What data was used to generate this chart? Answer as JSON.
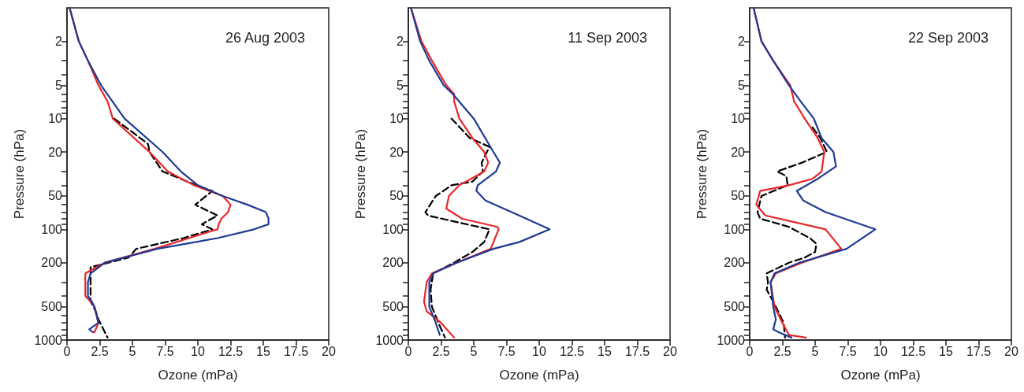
{
  "chart_data": [
    {
      "type": "line",
      "title": "26 Aug 2003",
      "xlabel": "Ozone (mPa)",
      "ylabel": "Pressure (hPa)",
      "log": "y",
      "xlim": [
        0,
        20
      ],
      "xticks": [
        0,
        2.5,
        5,
        7.5,
        10,
        12.5,
        15,
        17.5,
        20
      ],
      "ylim": [
        1000,
        1
      ],
      "yticks": [
        1000,
        {
          "value": 900,
          "label": null
        },
        {
          "value": 800,
          "label": null
        },
        {
          "value": 700,
          "label": null
        },
        {
          "value": 600,
          "label": null
        },
        500,
        {
          "value": 400,
          "label": null
        },
        {
          "value": 300,
          "label": null
        },
        200,
        100,
        {
          "value": 90,
          "label": null
        },
        {
          "value": 80,
          "label": null
        },
        {
          "value": 70,
          "label": null
        },
        {
          "value": 60,
          "label": null
        },
        50,
        {
          "value": 40,
          "label": null
        },
        {
          "value": 30,
          "label": null
        },
        20,
        10,
        {
          "value": 9,
          "label": null
        },
        {
          "value": 8,
          "label": null
        },
        {
          "value": 7,
          "label": null
        },
        {
          "value": 6,
          "label": null
        },
        5,
        {
          "value": 4,
          "label": null
        },
        {
          "value": 3,
          "label": null
        },
        2
      ],
      "series": [
        {
          "color": "#000000",
          "line_style": "dashed",
          "x": [
            3.6,
            4.9,
            6.2,
            6.3,
            7.3,
            9.9,
            11.1,
            9.8,
            11.5,
            10.3,
            11.1,
            8.9,
            5.3,
            4.7,
            1.8,
            1.8,
            2.2,
            2.4,
            3.1
          ],
          "values": [
            10,
            13,
            17,
            20,
            30,
            40,
            45,
            60,
            75,
            90,
            100,
            120,
            150,
            180,
            220,
            450,
            550,
            650,
            950
          ]
        },
        {
          "color": "#e8262a",
          "line_style": "solid",
          "x": [
            0.2,
            0.9,
            1.6,
            2.4,
            3.1,
            3.5,
            6.3,
            7.7,
            9.7,
            11.9,
            12.5,
            12.3,
            11.8,
            11.6,
            11.5,
            10.9,
            6.7,
            2.9,
            1.4,
            1.4,
            1.4,
            1.8,
            2.1,
            2.4,
            2.1
          ],
          "values": [
            1,
            2,
            3,
            5,
            7,
            10,
            20,
            30,
            40,
            50,
            60,
            70,
            80,
            90,
            100,
            105,
            150,
            200,
            250,
            300,
            400,
            450,
            500,
            700,
            850
          ]
        },
        {
          "color": "#1f3a93",
          "line_style": "solid",
          "x": [
            0.2,
            0.9,
            1.6,
            2.6,
            4.4,
            7.3,
            8.7,
            10.0,
            11.9,
            13.8,
            15.2,
            15.4,
            15.4,
            14.3,
            11.5,
            6.9,
            2.9,
            1.8,
            1.6,
            1.6,
            1.9,
            2.1,
            2.4,
            1.7,
            2.0
          ],
          "values": [
            1,
            2,
            3,
            5,
            10,
            20,
            30,
            40,
            50,
            60,
            70,
            80,
            90,
            100,
            120,
            150,
            200,
            250,
            300,
            400,
            450,
            500,
            700,
            800,
            850
          ]
        }
      ]
    },
    {
      "type": "line",
      "title": "11 Sep 2003",
      "xlabel": "Ozone (mPa)",
      "ylabel": "Pressure (hPa)",
      "log": "y",
      "xlim": [
        0,
        20
      ],
      "xticks": [
        0,
        2.5,
        5,
        7.5,
        10,
        12.5,
        15,
        17.5,
        20
      ],
      "ylim": [
        1000,
        1
      ],
      "yticks": [
        1000,
        {
          "value": 900,
          "label": null
        },
        {
          "value": 800,
          "label": null
        },
        {
          "value": 700,
          "label": null
        },
        {
          "value": 600,
          "label": null
        },
        500,
        {
          "value": 400,
          "label": null
        },
        {
          "value": 300,
          "label": null
        },
        200,
        100,
        {
          "value": 90,
          "label": null
        },
        {
          "value": 80,
          "label": null
        },
        {
          "value": 70,
          "label": null
        },
        {
          "value": 60,
          "label": null
        },
        50,
        {
          "value": 40,
          "label": null
        },
        {
          "value": 30,
          "label": null
        },
        20,
        10,
        {
          "value": 9,
          "label": null
        },
        {
          "value": 8,
          "label": null
        },
        {
          "value": 7,
          "label": null
        },
        {
          "value": 6,
          "label": null
        },
        5,
        {
          "value": 4,
          "label": null
        },
        {
          "value": 3,
          "label": null
        },
        2
      ],
      "series": [
        {
          "color": "#000000",
          "line_style": "dashed",
          "x": [
            3.3,
            4.7,
            6.2,
            5.6,
            5.7,
            4.9,
            3.3,
            2.1,
            1.3,
            1.5,
            3.5,
            6.2,
            5.8,
            4.9,
            3.5,
            1.9,
            1.7,
            1.8,
            2.3,
            2.8
          ],
          "values": [
            10,
            15,
            18,
            25,
            30,
            37,
            40,
            50,
            70,
            75,
            85,
            100,
            130,
            160,
            200,
            250,
            350,
            500,
            700,
            950
          ]
        },
        {
          "color": "#e8262a",
          "line_style": "solid",
          "x": [
            0.2,
            1.0,
            1.8,
            2.9,
            3.5,
            3.5,
            3.9,
            4.9,
            5.8,
            6.1,
            5.8,
            3.9,
            3.1,
            2.9,
            4.1,
            6.8,
            6.9,
            6.3,
            3.7,
            1.8,
            1.4,
            1.2,
            1.4,
            2.5,
            3.5
          ],
          "values": [
            1,
            2,
            3,
            5,
            6,
            7,
            10,
            15,
            20,
            25,
            30,
            40,
            50,
            65,
            80,
            95,
            100,
            150,
            200,
            250,
            300,
            450,
            550,
            700,
            950
          ]
        },
        {
          "color": "#1f3a93",
          "line_style": "solid",
          "x": [
            0.2,
            0.9,
            1.6,
            2.7,
            3.4,
            5.0,
            6.5,
            7.0,
            6.7,
            5.3,
            5.2,
            5.9,
            7.9,
            10.8,
            8.5,
            6.5,
            3.7,
            1.9,
            1.6,
            1.6,
            2.1,
            2.4
          ],
          "values": [
            1,
            2,
            3,
            5,
            6,
            10,
            20,
            25,
            30,
            40,
            45,
            55,
            70,
            100,
            130,
            150,
            200,
            250,
            300,
            500,
            700,
            900
          ]
        }
      ]
    },
    {
      "type": "line",
      "title": "22 Sep 2003",
      "xlabel": "Ozone (mPa)",
      "ylabel": "Pressure (hPa)",
      "log": "y",
      "xlim": [
        0,
        20
      ],
      "xticks": [
        0,
        2.5,
        5,
        7.5,
        10,
        12.5,
        15,
        17.5,
        20
      ],
      "ylim": [
        1000,
        1
      ],
      "yticks": [
        1000,
        {
          "value": 900,
          "label": null
        },
        {
          "value": 800,
          "label": null
        },
        {
          "value": 700,
          "label": null
        },
        {
          "value": 600,
          "label": null
        },
        500,
        {
          "value": 400,
          "label": null
        },
        {
          "value": 300,
          "label": null
        },
        200,
        100,
        {
          "value": 90,
          "label": null
        },
        {
          "value": 80,
          "label": null
        },
        {
          "value": 70,
          "label": null
        },
        {
          "value": 60,
          "label": null
        },
        50,
        {
          "value": 40,
          "label": null
        },
        {
          "value": 30,
          "label": null
        },
        20,
        10,
        {
          "value": 9,
          "label": null
        },
        {
          "value": 8,
          "label": null
        },
        {
          "value": 7,
          "label": null
        },
        {
          "value": 6,
          "label": null
        },
        5,
        {
          "value": 4,
          "label": null
        },
        {
          "value": 3,
          "label": null
        },
        2
      ],
      "series": [
        {
          "color": "#000000",
          "line_style": "dashed",
          "x": [
            4.8,
            5.4,
            5.9,
            4.0,
            2.1,
            2.8,
            2.9,
            0.9,
            0.6,
            0.8,
            3.0,
            4.6,
            5.1,
            5.0,
            4.2,
            3.0,
            1.3,
            1.4,
            1.3,
            2.0,
            2.6,
            2.7
          ],
          "values": [
            12,
            15,
            20,
            25,
            30,
            33,
            40,
            50,
            70,
            80,
            95,
            120,
            135,
            160,
            180,
            200,
            250,
            300,
            350,
            500,
            700,
            950
          ]
        },
        {
          "color": "#e8262a",
          "line_style": "solid",
          "x": [
            0.3,
            0.9,
            1.8,
            3.1,
            3.4,
            4.2,
            5.2,
            5.7,
            5.5,
            4.8,
            3.0,
            0.8,
            0.7,
            0.5,
            1.2,
            3.2,
            5.8,
            7.0,
            4.0,
            2.0,
            1.6,
            1.9,
            2.5,
            3.0,
            4.3
          ],
          "values": [
            1,
            2,
            3,
            5,
            7,
            10,
            15,
            20,
            30,
            35,
            40,
            45,
            50,
            60,
            75,
            85,
            100,
            150,
            200,
            250,
            300,
            500,
            700,
            900,
            950
          ]
        },
        {
          "color": "#1f3a93",
          "line_style": "solid",
          "x": [
            0.3,
            0.9,
            1.8,
            3.0,
            3.9,
            4.9,
            5.5,
            6.4,
            6.6,
            5.2,
            3.6,
            4.1,
            5.8,
            9.6,
            7.4,
            3.8,
            1.9,
            1.6,
            1.8,
            2.0,
            1.8,
            2.2,
            3.2
          ],
          "values": [
            1,
            2,
            3,
            5,
            7,
            10,
            15,
            20,
            27,
            35,
            45,
            55,
            70,
            100,
            150,
            200,
            250,
            300,
            500,
            650,
            800,
            850,
            950
          ]
        }
      ]
    }
  ]
}
